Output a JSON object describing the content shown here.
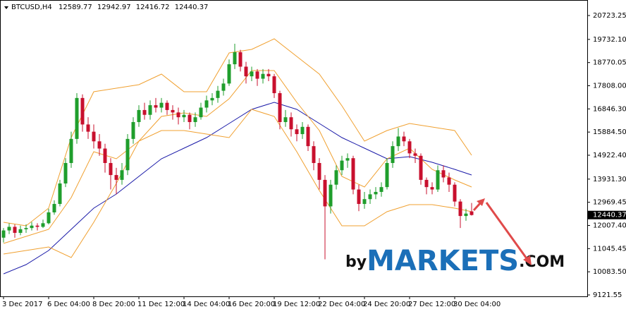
{
  "chart_data": {
    "type": "candlestick",
    "title": "BTCUSD,H4",
    "watermark": {
      "by": "by",
      "brand": "MARKETS",
      "suffix": ".COM"
    },
    "up_color": "#1f9e2c",
    "down_color": "#c8102e",
    "categories": [
      "3 Dec 2017",
      null,
      null,
      null,
      null,
      null,
      null,
      null,
      "6 Dec 04:00",
      null,
      null,
      null,
      null,
      null,
      null,
      null,
      "8 Dec 20:00",
      null,
      null,
      null,
      null,
      null,
      null,
      null,
      "11 Dec 12:00",
      null,
      null,
      null,
      null,
      null,
      null,
      null,
      "14 Dec 04:00",
      null,
      null,
      null,
      null,
      null,
      null,
      null,
      "16 Dec 20:00",
      null,
      null,
      null,
      null,
      null,
      null,
      null,
      "19 Dec 12:00",
      null,
      null,
      null,
      null,
      null,
      null,
      null,
      "22 Dec 04:00",
      null,
      null,
      null,
      null,
      null,
      null,
      null,
      "24 Dec 20:00",
      null,
      null,
      null,
      null,
      null,
      null,
      null,
      "27 Dec 12:00",
      null,
      null,
      null,
      null,
      null,
      null,
      null,
      "30 Dec 04:00",
      null,
      null,
      null
    ],
    "open": [
      11500,
      11800,
      11950,
      11700,
      11850,
      11900,
      12000,
      11950,
      12100,
      12550,
      12900,
      13750,
      14600,
      15600,
      17300,
      16200,
      15900,
      15500,
      15200,
      14600,
      14100,
      13900,
      14300,
      15600,
      16300,
      16800,
      16600,
      17000,
      16900,
      17100,
      16800,
      16700,
      16500,
      16600,
      16300,
      16500,
      16900,
      17200,
      17300,
      17600,
      17900,
      18700,
      19200,
      18600,
      18200,
      18400,
      18100,
      18300,
      18200,
      17500,
      16300,
      16500,
      16000,
      15800,
      16100,
      15300,
      14600,
      13900,
      12800,
      13700,
      14300,
      14700,
      14800,
      13500,
      12900,
      13100,
      13300,
      13400,
      13600,
      14600,
      15300,
      15700,
      15500,
      15000,
      14900,
      13900,
      13600,
      13500,
      14300,
      14000,
      13700,
      13000,
      12400,
      12589.77
    ],
    "high": [
      11900,
      12100,
      12050,
      12000,
      12050,
      12150,
      12100,
      12250,
      12700,
      13050,
      13900,
      14800,
      15900,
      17500,
      17450,
      16500,
      16200,
      15800,
      15400,
      14800,
      14400,
      14600,
      15800,
      16500,
      17000,
      17100,
      17200,
      17300,
      17300,
      17200,
      17000,
      16900,
      16800,
      16700,
      16700,
      17100,
      17400,
      17500,
      17800,
      18100,
      18900,
      19550,
      19300,
      18800,
      18600,
      18500,
      18500,
      18500,
      18300,
      17600,
      16800,
      16700,
      16200,
      16300,
      16200,
      15500,
      14800,
      14100,
      13900,
      14500,
      14900,
      15000,
      14900,
      13700,
      13400,
      13500,
      13600,
      13800,
      14800,
      15500,
      16050,
      15900,
      15600,
      15200,
      15000,
      14000,
      13800,
      14500,
      14500,
      14200,
      13800,
      13100,
      12700,
      12942.97
    ],
    "low": [
      11300,
      11650,
      11500,
      11600,
      11700,
      11800,
      11800,
      11900,
      12050,
      12450,
      12800,
      13600,
      14400,
      15400,
      15900,
      15600,
      15200,
      14900,
      14200,
      13500,
      13300,
      13700,
      14100,
      15400,
      16100,
      16400,
      16400,
      16700,
      16700,
      16600,
      16400,
      16200,
      16300,
      16000,
      16100,
      16400,
      16700,
      17000,
      17100,
      17400,
      17800,
      18500,
      18400,
      17900,
      18000,
      17800,
      17900,
      18000,
      17300,
      16000,
      16100,
      15700,
      15500,
      15600,
      15100,
      14300,
      13500,
      10600,
      12500,
      13500,
      14100,
      14400,
      13300,
      12600,
      12700,
      12900,
      13100,
      13200,
      13500,
      14400,
      15100,
      15300,
      14800,
      14600,
      13700,
      13300,
      13300,
      13400,
      13800,
      13400,
      12800,
      11900,
      12200,
      12416.72
    ],
    "close": [
      11800,
      11950,
      11700,
      11850,
      11900,
      12000,
      11950,
      12100,
      12550,
      12900,
      13750,
      14600,
      15600,
      17300,
      16200,
      15900,
      15500,
      15200,
      14600,
      14100,
      13900,
      14300,
      15600,
      16300,
      16800,
      16600,
      17000,
      16900,
      17100,
      16800,
      16700,
      16500,
      16600,
      16300,
      16500,
      16900,
      17200,
      17300,
      17600,
      17900,
      18700,
      19200,
      18600,
      18200,
      18400,
      18100,
      18300,
      18200,
      17500,
      16300,
      16500,
      16000,
      15800,
      16100,
      15300,
      14600,
      13900,
      12800,
      13700,
      14300,
      14700,
      14800,
      13500,
      12900,
      13100,
      13300,
      13400,
      13600,
      14600,
      15300,
      15700,
      15500,
      15000,
      14900,
      13900,
      13600,
      13500,
      14300,
      14000,
      13700,
      13000,
      12400,
      12500,
      12440.37
    ],
    "line_x": [
      0,
      4,
      8,
      12,
      16,
      20,
      24,
      28,
      32,
      36,
      40,
      44,
      48,
      52,
      56,
      60,
      64,
      68,
      72,
      76,
      80,
      83
    ],
    "lines": [
      {
        "color": "#1a1aa8",
        "values": [
          9999,
          10380,
          10966,
          11845,
          12724,
          13310,
          14043,
          14775,
          15215,
          15654,
          16240,
          16826,
          17119,
          16826,
          16240,
          15654,
          15215,
          14775,
          14863,
          14629,
          14336,
          14101
        ]
      },
      {
        "color": "#f0a030",
        "values": [
          11259,
          11552,
          11845,
          13164,
          15068,
          14775,
          15508,
          16533,
          16680,
          16533,
          17266,
          18438,
          18438,
          17119,
          15947,
          14043,
          13603,
          14775,
          15215,
          14336,
          13896,
          13603
        ]
      },
      {
        "color": "#f0a030",
        "values": [
          12138,
          11992,
          12724,
          15654,
          17559,
          17705,
          17852,
          18291,
          17559,
          17559,
          19170,
          19317,
          19756,
          19024,
          18291,
          16973,
          15508,
          15947,
          16240,
          16094,
          15947,
          14922
        ]
      },
      {
        "color": "#f0a030",
        "values": [
          10820,
          10966,
          11113,
          10673,
          12138,
          13750,
          15508,
          15947,
          15947,
          15801,
          15654,
          16826,
          16533,
          15068,
          13457,
          11992,
          11992,
          12578,
          12871,
          12871,
          12724,
          12578
        ]
      }
    ],
    "ylim": [
      9063,
      21368
    ],
    "yticks": [
      20723.25,
      {
        "value": 19732.1,
        "label": "19732.10"
      },
      18770.05,
      {
        "value": 17808,
        "label": "17808.00"
      },
      {
        "value": 16846.3,
        "label": "16846.30"
      },
      {
        "value": 15884.5,
        "label": "15884.50"
      },
      {
        "value": 14922.4,
        "label": "14922.40"
      },
      {
        "value": 13931.3,
        "label": "13931.30"
      },
      12969.45,
      {
        "value": 12007.4,
        "label": "12007.40"
      },
      11045.45,
      {
        "value": 10083.5,
        "label": "10083.50"
      },
      9121.55
    ],
    "grid": false
  }
}
